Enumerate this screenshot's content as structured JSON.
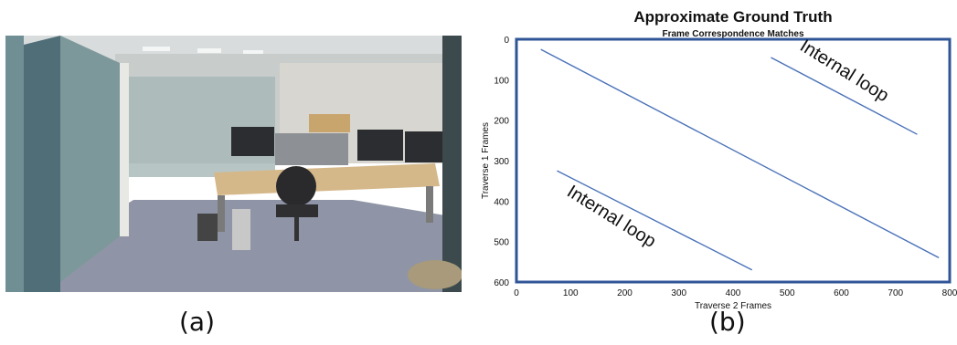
{
  "figure": {
    "panel_a_caption": "(a)",
    "panel_b_caption": "(b)",
    "photo_description_icon": "office-photo"
  },
  "chart_data": {
    "type": "line",
    "title": "Approximate Ground Truth",
    "subtitle": "Frame Correspondence Matches",
    "xlabel": "Traverse 2 Frames",
    "ylabel": "Traverse 1 Frames",
    "xlim": [
      0,
      800
    ],
    "ylim": [
      600,
      0
    ],
    "y_inverted": true,
    "xticks": [
      0,
      100,
      200,
      300,
      400,
      500,
      600,
      700,
      800
    ],
    "yticks": [
      0,
      100,
      200,
      300,
      400,
      500,
      600
    ],
    "grid": false,
    "line_color": "#4a72b8",
    "series": [
      {
        "x": [
          45,
          780
        ],
        "y": [
          25,
          540
        ]
      },
      {
        "x": [
          470,
          740
        ],
        "y": [
          45,
          235
        ]
      },
      {
        "x": [
          75,
          435
        ],
        "y": [
          325,
          570
        ]
      }
    ],
    "annotations": [
      {
        "text": "Internal loop",
        "x": 600,
        "y": 90,
        "angle": 32
      },
      {
        "text": "Internal loop",
        "x": 170,
        "y": 450,
        "angle": 32
      }
    ]
  }
}
